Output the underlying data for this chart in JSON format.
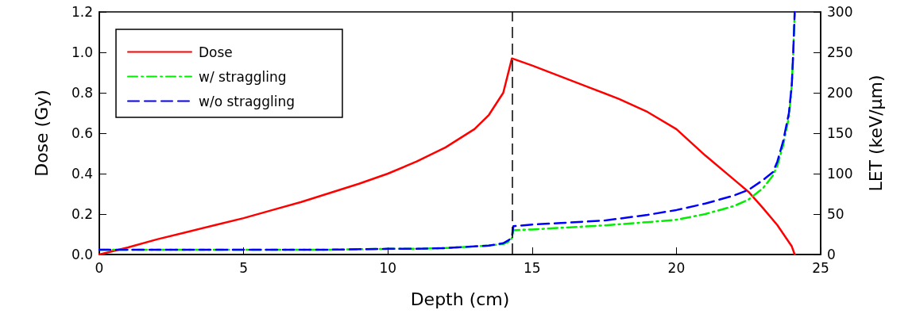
{
  "chart_data": {
    "type": "line",
    "xlabel": "Depth (cm)",
    "ylabel": "Dose (Gy)",
    "y2label": "LET (keV/µm)",
    "xlim": [
      0,
      25
    ],
    "xticks": [
      0,
      5,
      10,
      15,
      20,
      25
    ],
    "ylim": [
      0,
      1.2
    ],
    "yticks": [
      {
        "value": 0,
        "label": "0.0"
      },
      0.2,
      0.4,
      0.6,
      0.8,
      {
        "value": 1,
        "label": "1.0"
      },
      1.2
    ],
    "y2lim": [
      0,
      300
    ],
    "y2ticks": [
      0,
      50,
      100,
      150,
      200,
      250,
      300
    ],
    "grid": false,
    "legend": "top left",
    "marker": "none",
    "ref_lines": [
      {
        "axis": "x",
        "value": 14.3,
        "color": "#000000",
        "line_style": "dashed"
      }
    ],
    "series": [
      {
        "name": "Dose",
        "color": "#ff0000",
        "line_style": "solid",
        "x": [
          0,
          1,
          2,
          3,
          4,
          5,
          6,
          7,
          8,
          9,
          10,
          11,
          12,
          13,
          13.5,
          14,
          14.3,
          15,
          16,
          17,
          18,
          19,
          20,
          21,
          22,
          22.5,
          23,
          23.5,
          24,
          24.1
        ],
        "values": [
          0,
          0.035,
          0.075,
          0.11,
          0.145,
          0.18,
          0.22,
          0.26,
          0.305,
          0.35,
          0.4,
          0.46,
          0.53,
          0.62,
          0.69,
          0.8,
          0.97,
          0.935,
          0.88,
          0.825,
          0.77,
          0.705,
          0.62,
          0.49,
          0.37,
          0.31,
          0.23,
          0.145,
          0.04,
          0
        ]
      },
      {
        "name": "w/ straggling",
        "color": "#00ee00",
        "line_style": "dashdot",
        "axis": "y2",
        "x": [
          0,
          2,
          4,
          6,
          8,
          10,
          11,
          12,
          13,
          13.5,
          14,
          14.2,
          14.3,
          14.35,
          15,
          16,
          17.5,
          19,
          20,
          21,
          22,
          22.5,
          23,
          23.35,
          23.5,
          23.7,
          23.9,
          24,
          24.05,
          24.1
        ],
        "values": [
          6,
          6,
          6,
          6,
          6,
          7,
          7,
          8,
          10,
          11,
          13,
          16,
          20,
          30,
          31,
          33,
          36,
          40,
          43,
          50,
          60,
          68,
          82,
          98,
          110,
          135,
          170,
          210,
          250,
          300
        ]
      },
      {
        "name": "w/o straggling",
        "color": "#0000ff",
        "line_style": "dashed",
        "axis": "y2",
        "x": [
          0,
          2,
          4,
          6,
          8,
          10,
          11,
          12,
          13,
          13.5,
          14,
          14.2,
          14.3,
          14.35,
          15,
          16,
          17.5,
          19,
          20,
          21,
          22,
          22.5,
          23,
          23.35,
          23.5,
          23.7,
          23.9,
          24,
          24.05,
          24.1
        ],
        "values": [
          6,
          6,
          6,
          6,
          6,
          7,
          7,
          8,
          10,
          11,
          14,
          18,
          22,
          35,
          37,
          39,
          42,
          49,
          55,
          63,
          73,
          80,
          92,
          102,
          115,
          140,
          175,
          210,
          250,
          300
        ]
      }
    ]
  }
}
